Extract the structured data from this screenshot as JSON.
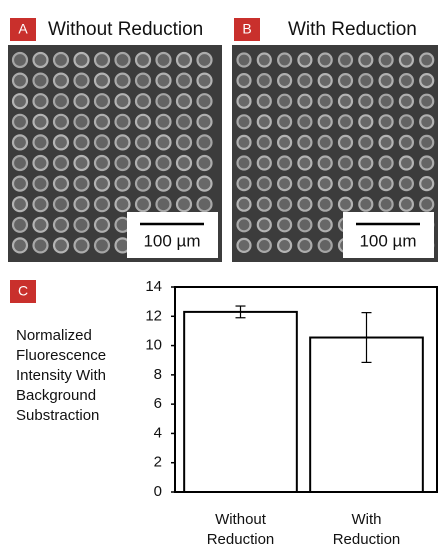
{
  "panels": [
    {
      "label": "A",
      "title": "Without Reduction",
      "scale_bar": "100 µm"
    },
    {
      "label": "B",
      "title": "With Reduction",
      "scale_bar": "100 µm"
    }
  ],
  "chart_panel_label": "C",
  "chart_data": {
    "type": "bar",
    "y_label": "Normalized Fluorescence Intensity With Background Substraction",
    "categories": [
      "Without Reduction",
      "With Reduction"
    ],
    "values": [
      12.3,
      10.55
    ],
    "errors": [
      0.4,
      1.7
    ],
    "color": "#ffffff",
    "edge_color": "#000000",
    "ylim": [
      0,
      14
    ],
    "yticks": [
      0,
      2,
      4,
      6,
      8,
      10,
      12,
      14
    ]
  }
}
